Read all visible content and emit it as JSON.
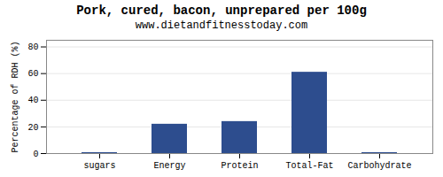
{
  "chart_data": {
    "type": "bar",
    "title": "Pork, cured, bacon, unprepared per 100g",
    "subtitle": "www.dietandfitnesstoday.com",
    "ylabel": "Percentage of RDH (%)",
    "categories": [
      "sugars",
      "Energy",
      "Protein",
      "Total-Fat",
      "Carbohydrate"
    ],
    "values": [
      0.7,
      22,
      24,
      61,
      0.7
    ],
    "color": "#2d4d8e",
    "ylim": [
      0,
      85
    ],
    "yticks": [
      0,
      20,
      40,
      60,
      80
    ],
    "grid": true
  }
}
